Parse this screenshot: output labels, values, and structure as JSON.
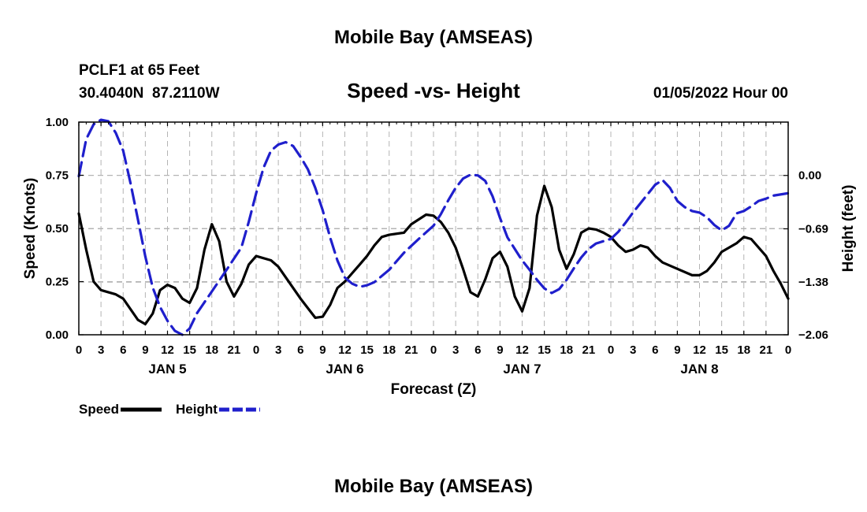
{
  "header": {
    "title": "Mobile Bay (AMSEAS)",
    "station": "PCLF1 at 65 Feet",
    "coords": "30.4040N  87.2110W",
    "chart_title": "Speed -vs- Height",
    "datetime": "01/05/2022 Hour 00"
  },
  "footer": {
    "title": "Mobile Bay (AMSEAS)"
  },
  "chart_data": {
    "type": "line",
    "xlabel": "Forecast (Z)",
    "ylabel": "Speed (Knots)",
    "y2label": "Height (feet)",
    "xlim": [
      0,
      96
    ],
    "ylim": [
      0,
      1
    ],
    "y2lim": [
      -2.06,
      0.69
    ],
    "x_tick_labels": [
      "0",
      "3",
      "6",
      "9",
      "12",
      "15",
      "18",
      "21",
      "0",
      "3",
      "6",
      "9",
      "12",
      "15",
      "18",
      "21",
      "0",
      "3",
      "6",
      "9",
      "12",
      "15",
      "18",
      "21",
      "0",
      "3",
      "6",
      "9",
      "12",
      "15",
      "18",
      "21",
      "0"
    ],
    "day_labels": [
      {
        "x": 12,
        "label": "JAN 5"
      },
      {
        "x": 36,
        "label": "JAN 6"
      },
      {
        "x": 60,
        "label": "JAN 7"
      },
      {
        "x": 84,
        "label": "JAN 8"
      }
    ],
    "y_ticks": [
      {
        "value": 0,
        "label": "0.00"
      },
      {
        "value": 0.25,
        "label": "0.25"
      },
      {
        "value": 0.5,
        "label": "0.50"
      },
      {
        "value": 0.75,
        "label": "0.75"
      },
      {
        "value": 1,
        "label": "1.00"
      }
    ],
    "y2_ticks": [
      {
        "value": 0.0,
        "label": "0.00"
      },
      {
        "value": -0.69,
        "label": "−0.69"
      },
      {
        "value": -1.38,
        "label": "−1.38"
      },
      {
        "value": -2.06,
        "label": "−2.06"
      }
    ],
    "grid": true,
    "legend_position": "bottom-left",
    "series": [
      {
        "name": "Speed",
        "axis": "left",
        "color": "#000000",
        "dash": "solid",
        "points": [
          [
            0,
            0.57
          ],
          [
            1,
            0.4
          ],
          [
            2,
            0.25
          ],
          [
            3,
            0.21
          ],
          [
            5,
            0.19
          ],
          [
            6,
            0.17
          ],
          [
            8,
            0.07
          ],
          [
            9,
            0.05
          ],
          [
            10,
            0.1
          ],
          [
            11,
            0.21
          ],
          [
            12,
            0.235
          ],
          [
            13,
            0.22
          ],
          [
            14,
            0.17
          ],
          [
            15,
            0.15
          ],
          [
            16,
            0.22
          ],
          [
            17,
            0.4
          ],
          [
            18,
            0.52
          ],
          [
            19,
            0.44
          ],
          [
            20,
            0.25
          ],
          [
            21,
            0.18
          ],
          [
            22,
            0.24
          ],
          [
            23,
            0.33
          ],
          [
            24,
            0.37
          ],
          [
            26,
            0.35
          ],
          [
            27,
            0.32
          ],
          [
            28,
            0.27
          ],
          [
            30,
            0.17
          ],
          [
            32,
            0.08
          ],
          [
            33,
            0.085
          ],
          [
            34,
            0.14
          ],
          [
            35,
            0.22
          ],
          [
            36,
            0.25
          ],
          [
            38,
            0.33
          ],
          [
            39,
            0.37
          ],
          [
            40,
            0.42
          ],
          [
            41,
            0.46
          ],
          [
            42,
            0.47
          ],
          [
            44,
            0.48
          ],
          [
            45,
            0.52
          ],
          [
            47,
            0.565
          ],
          [
            48,
            0.56
          ],
          [
            49,
            0.53
          ],
          [
            50,
            0.48
          ],
          [
            51,
            0.41
          ],
          [
            52,
            0.31
          ],
          [
            53,
            0.2
          ],
          [
            54,
            0.18
          ],
          [
            55,
            0.26
          ],
          [
            56,
            0.36
          ],
          [
            57,
            0.39
          ],
          [
            58,
            0.32
          ],
          [
            59,
            0.18
          ],
          [
            60,
            0.11
          ],
          [
            61,
            0.22
          ],
          [
            62,
            0.56
          ],
          [
            63,
            0.7
          ],
          [
            64,
            0.6
          ],
          [
            65,
            0.4
          ],
          [
            66,
            0.31
          ],
          [
            67,
            0.38
          ],
          [
            68,
            0.48
          ],
          [
            69,
            0.5
          ],
          [
            70,
            0.495
          ],
          [
            71,
            0.48
          ],
          [
            72,
            0.46
          ],
          [
            73,
            0.42
          ],
          [
            74,
            0.39
          ],
          [
            75,
            0.4
          ],
          [
            76,
            0.42
          ],
          [
            77,
            0.41
          ],
          [
            78,
            0.37
          ],
          [
            79,
            0.34
          ],
          [
            81,
            0.31
          ],
          [
            83,
            0.28
          ],
          [
            84,
            0.28
          ],
          [
            85,
            0.3
          ],
          [
            86,
            0.34
          ],
          [
            87,
            0.39
          ],
          [
            89,
            0.43
          ],
          [
            90,
            0.46
          ],
          [
            91,
            0.45
          ],
          [
            93,
            0.37
          ],
          [
            94,
            0.3
          ],
          [
            95,
            0.24
          ],
          [
            96,
            0.17
          ]
        ]
      },
      {
        "name": "Height",
        "axis": "right",
        "color": "#1f1fcc",
        "dash": "dashed",
        "points": [
          [
            0,
            -0.01
          ],
          [
            1,
            0.47
          ],
          [
            2,
            0.66
          ],
          [
            3,
            0.72
          ],
          [
            4,
            0.7
          ],
          [
            5,
            0.55
          ],
          [
            6,
            0.32
          ],
          [
            7,
            -0.1
          ],
          [
            8,
            -0.57
          ],
          [
            9,
            -1.05
          ],
          [
            10,
            -1.45
          ],
          [
            11,
            -1.7
          ],
          [
            12,
            -1.88
          ],
          [
            13,
            -2.01
          ],
          [
            14,
            -2.06
          ],
          [
            15,
            -1.98
          ],
          [
            16,
            -1.78
          ],
          [
            18,
            -1.5
          ],
          [
            20,
            -1.22
          ],
          [
            22,
            -0.93
          ],
          [
            23,
            -0.6
          ],
          [
            24,
            -0.23
          ],
          [
            25,
            0.1
          ],
          [
            26,
            0.32
          ],
          [
            27,
            0.4
          ],
          [
            28,
            0.43
          ],
          [
            29,
            0.38
          ],
          [
            30,
            0.24
          ],
          [
            31,
            0.08
          ],
          [
            32,
            -0.16
          ],
          [
            33,
            -0.45
          ],
          [
            34,
            -0.8
          ],
          [
            35,
            -1.1
          ],
          [
            36,
            -1.32
          ],
          [
            37,
            -1.4
          ],
          [
            38,
            -1.44
          ],
          [
            39,
            -1.42
          ],
          [
            40,
            -1.38
          ],
          [
            42,
            -1.22
          ],
          [
            44,
            -1.0
          ],
          [
            46,
            -0.82
          ],
          [
            48,
            -0.65
          ],
          [
            49,
            -0.5
          ],
          [
            50,
            -0.32
          ],
          [
            51,
            -0.16
          ],
          [
            52,
            -0.04
          ],
          [
            53,
            0.01
          ],
          [
            54,
            0.0
          ],
          [
            55,
            -0.07
          ],
          [
            56,
            -0.27
          ],
          [
            57,
            -0.55
          ],
          [
            58,
            -0.8
          ],
          [
            59,
            -0.95
          ],
          [
            60,
            -1.1
          ],
          [
            61,
            -1.22
          ],
          [
            62,
            -1.35
          ],
          [
            63,
            -1.46
          ],
          [
            64,
            -1.52
          ],
          [
            65,
            -1.47
          ],
          [
            66,
            -1.35
          ],
          [
            67,
            -1.2
          ],
          [
            68,
            -1.06
          ],
          [
            69,
            -0.95
          ],
          [
            70,
            -0.88
          ],
          [
            72,
            -0.82
          ],
          [
            73,
            -0.73
          ],
          [
            74,
            -0.61
          ],
          [
            75,
            -0.48
          ],
          [
            76,
            -0.36
          ],
          [
            77,
            -0.24
          ],
          [
            78,
            -0.12
          ],
          [
            79,
            -0.06
          ],
          [
            80,
            -0.16
          ],
          [
            81,
            -0.33
          ],
          [
            82,
            -0.41
          ],
          [
            83,
            -0.46
          ],
          [
            84,
            -0.48
          ],
          [
            85,
            -0.54
          ],
          [
            86,
            -0.64
          ],
          [
            87,
            -0.71
          ],
          [
            88,
            -0.65
          ],
          [
            89,
            -0.49
          ],
          [
            90,
            -0.46
          ],
          [
            91,
            -0.4
          ],
          [
            92,
            -0.33
          ],
          [
            93,
            -0.3
          ],
          [
            94,
            -0.26
          ],
          [
            96,
            -0.23
          ]
        ]
      }
    ]
  }
}
